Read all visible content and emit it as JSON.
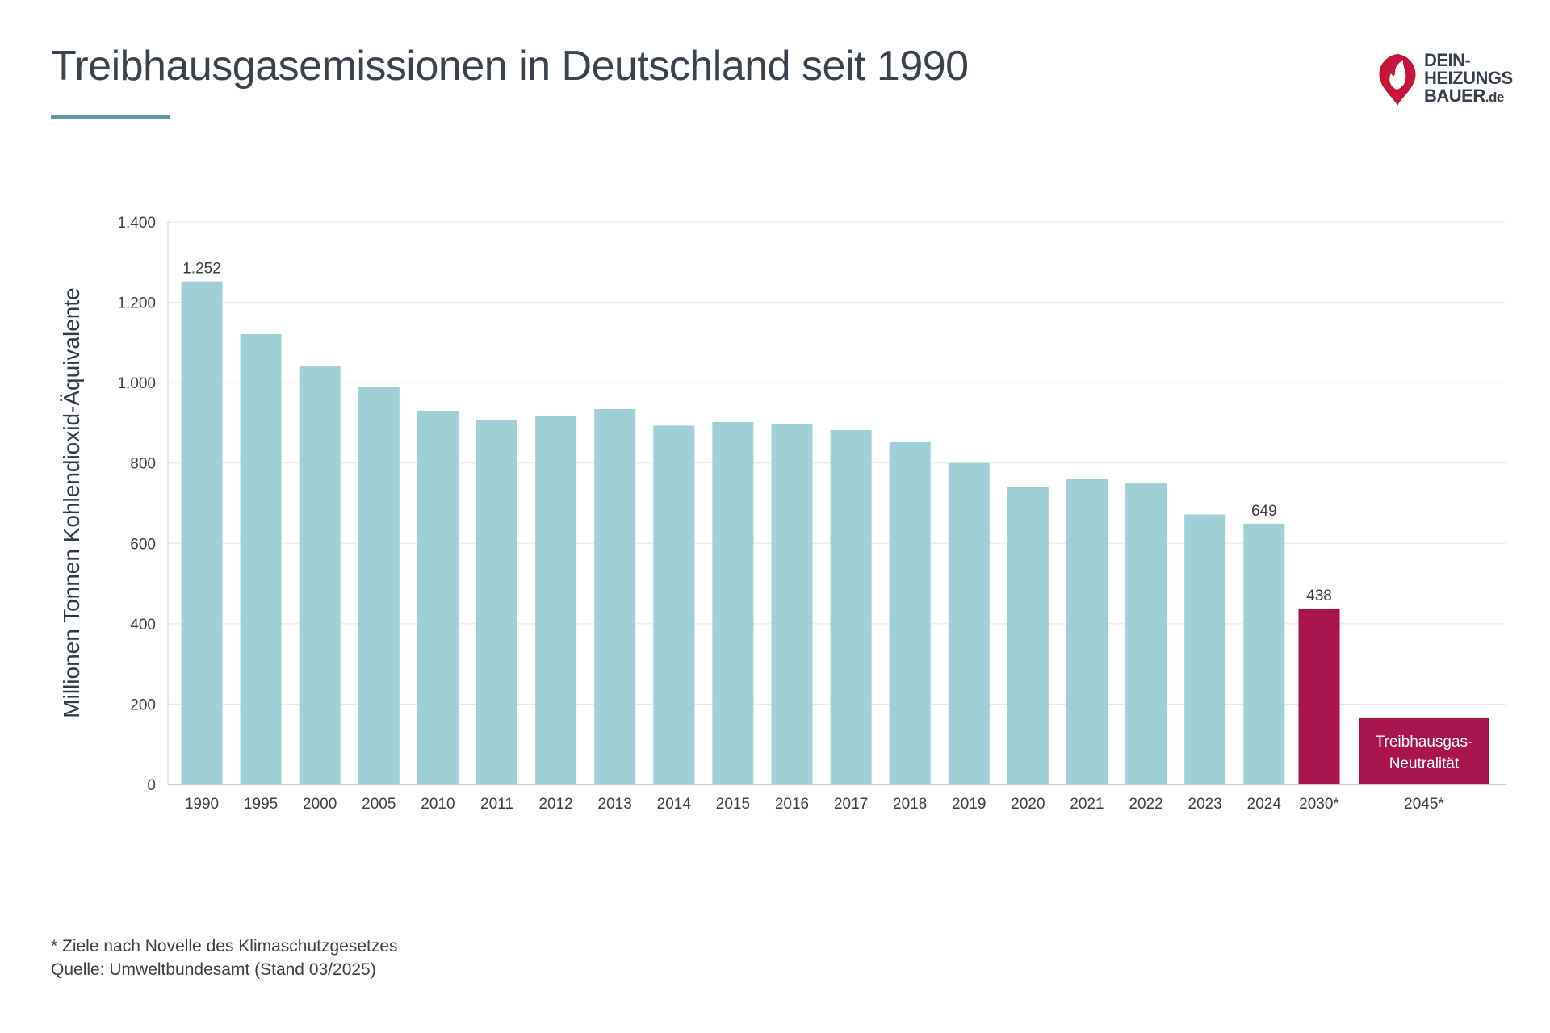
{
  "header": {
    "title": "Treibhausgasemissionen in Deutschland seit 1990",
    "accent_color": "#5f9aa8"
  },
  "logo": {
    "lines": [
      "DEIN-",
      "HEIZUNGS",
      "BAUER"
    ],
    "suffix": ".de",
    "icon": "flame-drop-icon",
    "color": "#c8143d"
  },
  "chart_data": {
    "type": "bar",
    "ylabel": "Millionen Tonnen Kohlendioxid-Äquivalente",
    "xlabel": "",
    "ylim": [
      0,
      1400
    ],
    "yticks": [
      0,
      200,
      400,
      600,
      800,
      1000,
      1200,
      1400
    ],
    "ytick_labels": [
      "0",
      "200",
      "400",
      "600",
      "800",
      "1.000",
      "1.200",
      "1.400"
    ],
    "grid": true,
    "categories": [
      "1990",
      "1995",
      "2000",
      "2005",
      "2010",
      "2011",
      "2012",
      "2013",
      "2014",
      "2015",
      "2016",
      "2017",
      "2018",
      "2019",
      "2020",
      "2021",
      "2022",
      "2023",
      "2024",
      "2030*",
      "2045*"
    ],
    "values": [
      1252,
      1121,
      1042,
      990,
      930,
      906,
      918,
      934,
      893,
      902,
      897,
      882,
      852,
      800,
      740,
      761,
      749,
      672,
      649,
      438,
      165
    ],
    "data_labels": [
      {
        "index": 0,
        "text": "1.252"
      },
      {
        "index": 18,
        "text": "649"
      },
      {
        "index": 19,
        "text": "438"
      }
    ],
    "inside_label": {
      "index": 20,
      "lines": [
        "Treibhausgas-",
        "Neutralität"
      ]
    },
    "historical_color": "#a0d0d6",
    "target_color": "#a8144e",
    "target_from_index": 19
  },
  "footnotes": {
    "note": "* Ziele nach Novelle des Klimaschutzgesetzes",
    "source": "Quelle: Umweltbundesamt (Stand 03/2025)"
  }
}
